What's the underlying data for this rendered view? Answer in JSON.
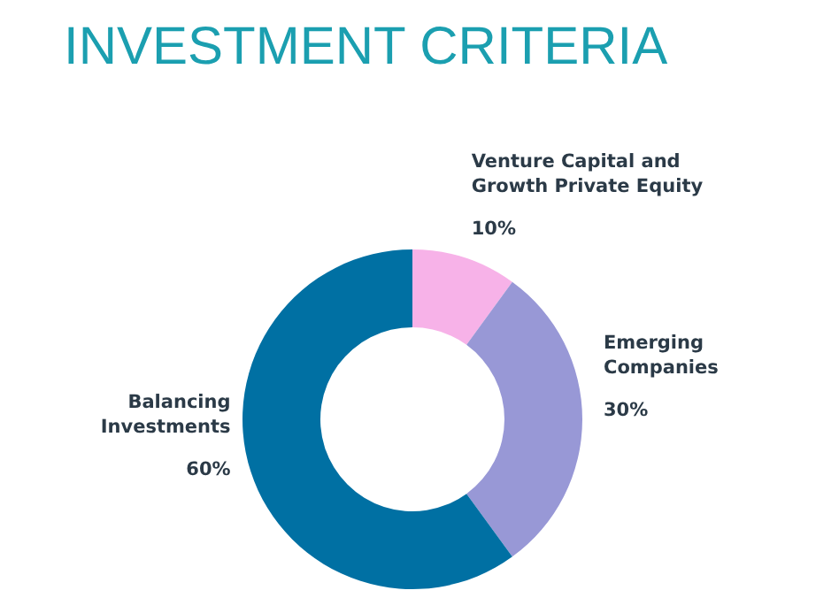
{
  "chart_data": {
    "type": "donut",
    "title": "INVESTMENT CRITERIA",
    "categories": [
      "Venture Capital and Growth Private Equity",
      "Emerging Companies",
      "Balancing Investments"
    ],
    "values": [
      10,
      30,
      60
    ],
    "colors": [
      "#f7b2e8",
      "#9898d6",
      "#0070a3"
    ],
    "value_labels": [
      "10%",
      "30%",
      "60%"
    ]
  }
}
